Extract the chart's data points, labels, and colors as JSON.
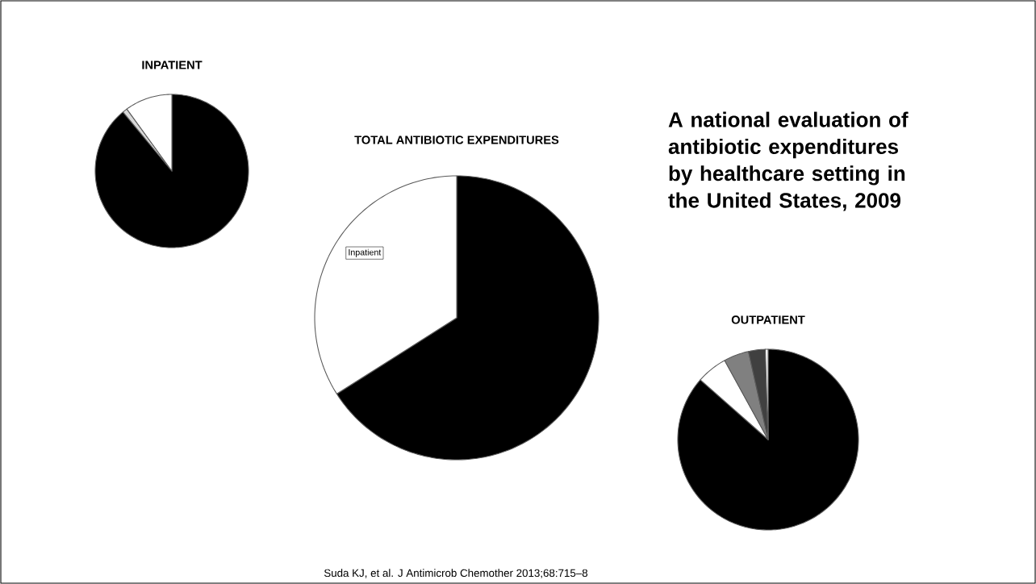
{
  "chart_data": [
    {
      "type": "pie",
      "title": "INPATIENT",
      "categories": [
        null,
        null,
        null
      ],
      "values": [
        89,
        1,
        10
      ],
      "colors": [
        "#000000",
        "#d9d9d9",
        "#ffffff"
      ]
    },
    {
      "type": "other",
      "title": "A national evaluation of antibiotic expenditures by healthcare setting in the United States, 2009"
    },
    {
      "type": "pie",
      "title": "TOTAL ANTIBIOTIC EXPENDITURES",
      "categories": [
        null,
        "Inpatient"
      ],
      "values": [
        66,
        34
      ],
      "colors": [
        "#000000",
        "#ffffff"
      ]
    },
    {
      "type": "pie",
      "title": "OUTPATIENT",
      "categories": [
        null,
        null,
        null,
        null,
        null
      ],
      "values": [
        86.5,
        5.5,
        4.5,
        3,
        0.5
      ],
      "colors": [
        "#000000",
        "#ffffff",
        "#808080",
        "#404040",
        "#ffffff"
      ]
    },
    {
      "type": "other",
      "annotations": [
        "Suda KJ, et al. J Antimicrob Chemother 2013;68:715–8"
      ]
    }
  ]
}
